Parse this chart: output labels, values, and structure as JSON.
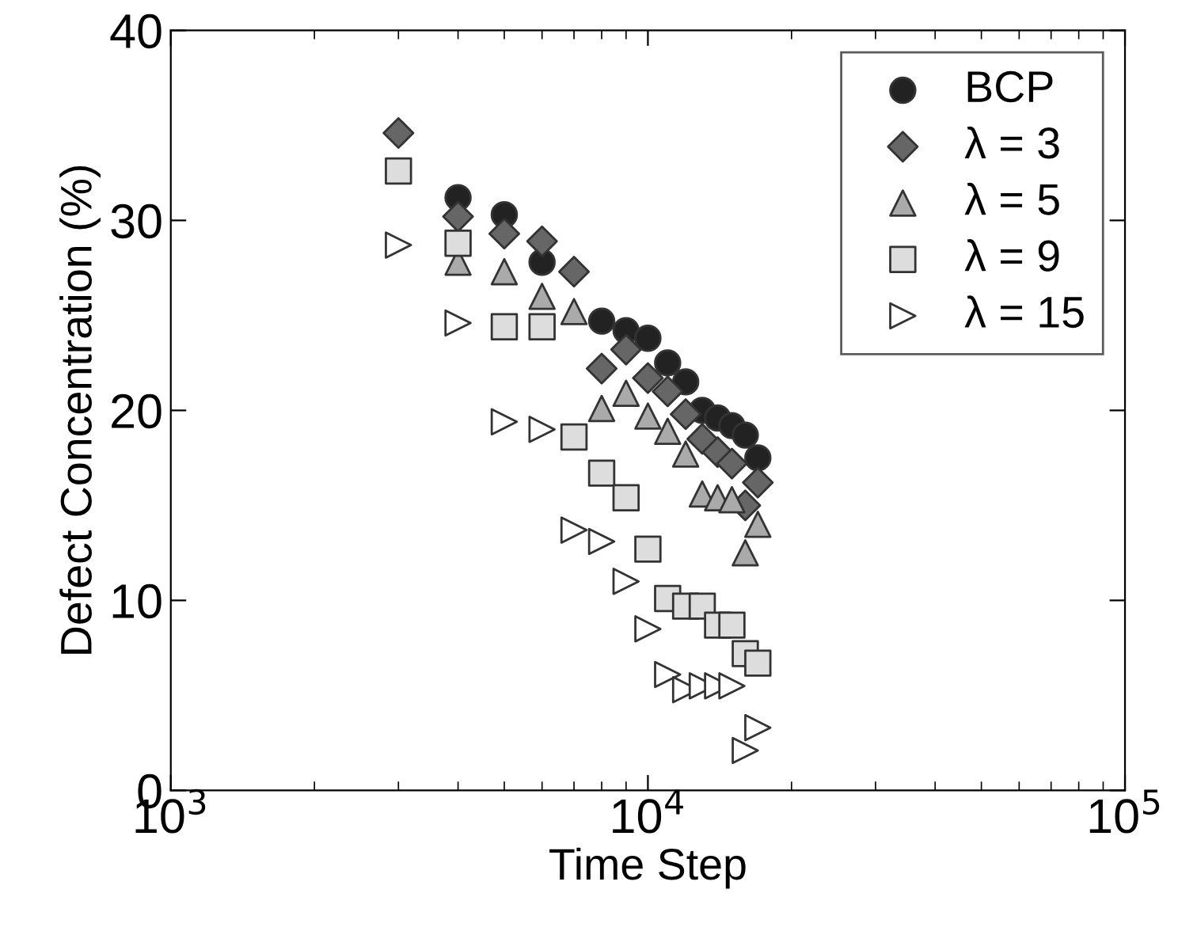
{
  "chart_data": {
    "type": "scatter",
    "xlabel": "Time Step",
    "ylabel": "Defect Concentration (%)",
    "log": "x",
    "xlim": [
      1000,
      100000
    ],
    "xticks": [
      {
        "value": 1000,
        "label": "10$^{3}$"
      },
      {
        "value": 10000,
        "label": "10$^{4}$"
      },
      {
        "value": 100000,
        "label": "10$^{5}$"
      }
    ],
    "ylim": [
      0,
      40
    ],
    "yticks": [
      0,
      10,
      20,
      30,
      40
    ],
    "legend": "top right",
    "grid": false,
    "x": [
      3000,
      4000,
      5000,
      6000,
      7000,
      8000,
      9000,
      10000,
      11000,
      12000,
      13000,
      14000,
      15000,
      16000,
      17000
    ],
    "series": [
      {
        "name": "BCP",
        "color": "#222222",
        "marker": "circle",
        "values": [
          null,
          31.2,
          30.3,
          27.8,
          null,
          24.7,
          24.2,
          23.8,
          22.5,
          21.5,
          20.0,
          19.6,
          19.2,
          18.7,
          17.5
        ]
      },
      {
        "name": "λ = 3",
        "color": "#666666",
        "marker": "diamond",
        "values": [
          34.6,
          30.2,
          29.3,
          28.9,
          27.3,
          22.2,
          23.2,
          21.7,
          21.0,
          19.8,
          18.5,
          17.8,
          17.2,
          15.0,
          16.2
        ]
      },
      {
        "name": "λ = 5",
        "color": "#aaaaaa",
        "marker": "triangle",
        "values": [
          null,
          27.8,
          27.3,
          26.0,
          25.2,
          20.1,
          20.9,
          19.7,
          18.9,
          17.7,
          15.6,
          15.4,
          15.3,
          12.5,
          14.0
        ]
      },
      {
        "name": "λ = 9",
        "color": "#dddddd",
        "marker": "square",
        "values": [
          32.6,
          28.8,
          24.4,
          24.4,
          18.6,
          16.7,
          15.4,
          12.7,
          10.1,
          9.7,
          9.7,
          8.7,
          8.7,
          7.2,
          6.7
        ]
      },
      {
        "name": "λ = 15",
        "color": "#ffffff",
        "marker": "triangle_right",
        "values": [
          28.7,
          24.6,
          19.4,
          19.0,
          13.7,
          13.1,
          11.0,
          8.5,
          6.1,
          5.3,
          5.5,
          5.5,
          5.5,
          2.1,
          3.3
        ]
      }
    ]
  }
}
